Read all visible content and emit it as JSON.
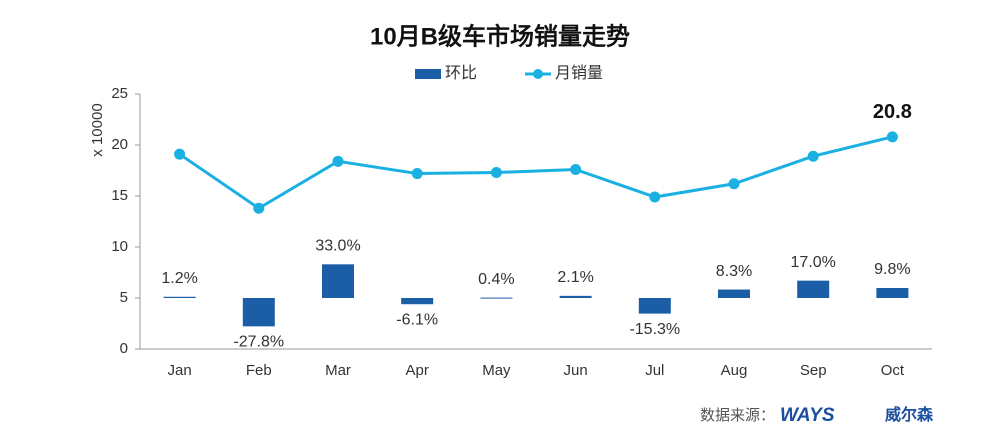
{
  "chart_data": {
    "type": "bar-line",
    "title": "10月B级车市场销量走势",
    "y_label": "x 10000",
    "categories": [
      "Jan",
      "Feb",
      "Mar",
      "Apr",
      "May",
      "Jun",
      "Jul",
      "Aug",
      "Sep",
      "Oct"
    ],
    "series": [
      {
        "name": "环比",
        "type": "bar",
        "axis": "y2",
        "color": "#1b5ea6",
        "values": [
          1.2,
          -27.8,
          33.0,
          -6.1,
          0.4,
          2.1,
          -15.3,
          8.3,
          17.0,
          9.8
        ],
        "value_labels": [
          "1.2%",
          "-27.8%",
          "33.0%",
          "-6.1%",
          "0.4%",
          "2.1%",
          "-15.3%",
          "8.3%",
          "17.0%",
          "9.8%"
        ]
      },
      {
        "name": "月销量",
        "type": "line",
        "color": "#1ab0e2",
        "values": [
          19.1,
          13.8,
          18.4,
          17.2,
          17.3,
          17.6,
          14.9,
          16.2,
          18.9,
          20.8
        ]
      }
    ],
    "ylim": [
      0,
      25
    ],
    "yticks": [
      0,
      5,
      10,
      15,
      20,
      25
    ],
    "y2lim": [
      -50,
      200
    ],
    "grid": false,
    "legend": "top",
    "source": "数据来源：",
    "logo": "WAYS",
    "logo_cn": "威尔森"
  }
}
